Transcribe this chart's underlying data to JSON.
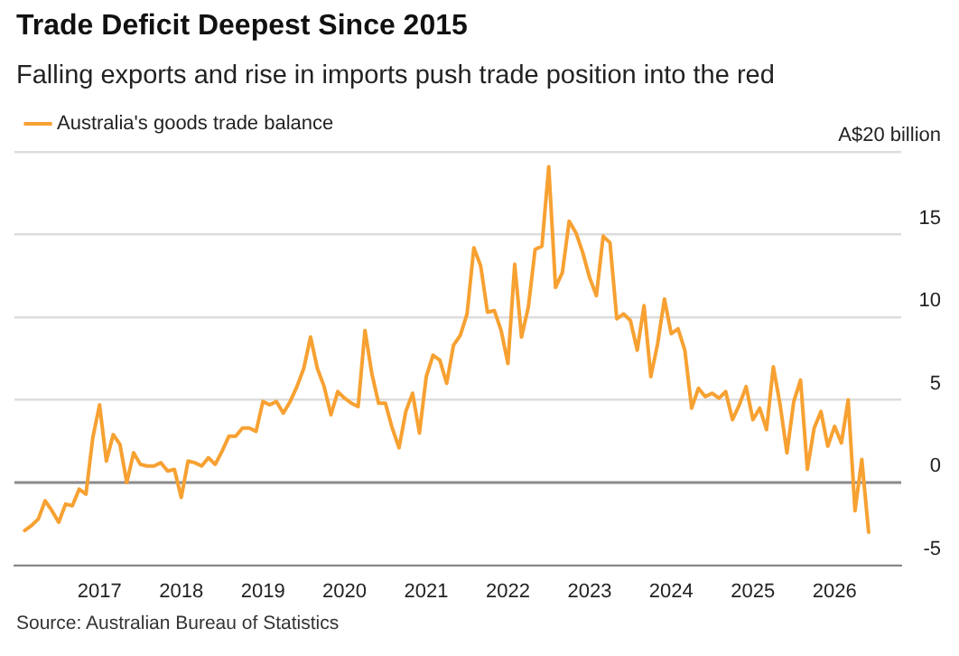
{
  "chart_data": {
    "type": "line",
    "title": "Trade Deficit Deepest Since 2015",
    "subtitle": "Falling exports and rise in imports push trade position into the red",
    "annotations": [
      "Source: Australian Bureau of Statistics"
    ],
    "x": [
      "2016-02",
      "2016-03",
      "2016-04",
      "2016-05",
      "2016-06",
      "2016-07",
      "2016-08",
      "2016-09",
      "2016-10",
      "2016-11",
      "2016-12",
      "2017-01",
      "2017-02",
      "2017-03",
      "2017-04",
      "2017-05",
      "2017-06",
      "2017-07",
      "2017-08",
      "2017-09",
      "2017-10",
      "2017-11",
      "2017-12",
      "2018-01",
      "2018-02",
      "2018-03",
      "2018-04",
      "2018-05",
      "2018-06",
      "2018-07",
      "2018-08",
      "2018-09",
      "2018-10",
      "2018-11",
      "2018-12",
      "2019-01",
      "2019-02",
      "2019-03",
      "2019-04",
      "2019-05",
      "2019-06",
      "2019-07",
      "2019-08",
      "2019-09",
      "2019-10",
      "2019-11",
      "2019-12",
      "2020-01",
      "2020-02",
      "2020-03",
      "2020-04",
      "2020-05",
      "2020-06",
      "2020-07",
      "2020-08",
      "2020-09",
      "2020-10",
      "2020-11",
      "2020-12",
      "2021-01",
      "2021-02",
      "2021-03",
      "2021-04",
      "2021-05",
      "2021-06",
      "2021-07",
      "2021-08",
      "2021-09",
      "2021-10",
      "2021-11",
      "2021-12",
      "2022-01",
      "2022-02",
      "2022-03",
      "2022-04",
      "2022-05",
      "2022-06",
      "2022-07",
      "2022-08",
      "2022-09",
      "2022-10",
      "2022-11",
      "2022-12",
      "2023-01",
      "2023-02",
      "2023-03",
      "2023-04",
      "2023-05",
      "2023-06",
      "2023-07",
      "2023-08",
      "2023-09",
      "2023-10",
      "2023-11",
      "2023-12",
      "2024-01",
      "2024-02",
      "2024-03",
      "2024-04",
      "2024-05",
      "2024-06",
      "2024-07",
      "2024-08",
      "2024-09",
      "2024-10",
      "2024-11",
      "2024-12",
      "2025-01",
      "2025-02",
      "2025-03",
      "2025-04",
      "2025-05",
      "2025-06",
      "2025-07",
      "2025-08",
      "2025-09",
      "2025-10",
      "2025-11",
      "2025-12",
      "2026-01",
      "2026-02",
      "2026-03",
      "2026-04",
      "2026-05",
      "2026-06"
    ],
    "series": [
      {
        "name": "Australia's goods trade balance",
        "color": "#f7a132",
        "values": [
          -2.9,
          -2.6,
          -2.2,
          -1.1,
          -1.7,
          -2.4,
          -1.3,
          -1.4,
          -0.4,
          -0.7,
          2.7,
          4.7,
          1.3,
          2.9,
          2.3,
          0,
          1.8,
          1.1,
          1.0,
          1.0,
          1.2,
          0.7,
          0.8,
          -0.9,
          1.3,
          1.2,
          1.0,
          1.5,
          1.1,
          1.9,
          2.8,
          2.8,
          3.3,
          3.3,
          3.1,
          4.9,
          4.7,
          4.9,
          4.2,
          4.9,
          5.8,
          6.9,
          8.8,
          6.9,
          5.8,
          4.1,
          5.5,
          5.1,
          4.8,
          4.6,
          9.2,
          6.6,
          4.8,
          4.8,
          3.3,
          2.1,
          4.3,
          5.4,
          3.0,
          6.4,
          7.7,
          7.4,
          6.0,
          8.3,
          8.9,
          10.2,
          14.2,
          13.1,
          10.3,
          10.4,
          9.2,
          7.2,
          13.2,
          8.8,
          10.6,
          14.1,
          14.3,
          19.1,
          11.8,
          12.7,
          15.8,
          15.1,
          13.9,
          12.4,
          11.3,
          14.9,
          14.5,
          9.9,
          10.2,
          9.8,
          8.0,
          10.7,
          6.4,
          8.4,
          11.1,
          9.0,
          9.3,
          8.0,
          4.5,
          5.7,
          5.2,
          5.4,
          5.1,
          5.5,
          3.8,
          4.7,
          5.8,
          3.8,
          4.5,
          3.2,
          7.0,
          4.7,
          1.8,
          4.9,
          6.2,
          0.8,
          3.3,
          4.3,
          2.2,
          3.4,
          2.4,
          5.0,
          -1.7,
          1.4,
          -3.0
        ]
      }
    ],
    "xlim": [
      "2015-12-16",
      "2026-10-25"
    ],
    "xticks": [
      "2017",
      "2018",
      "2019",
      "2020",
      "2021",
      "2022",
      "2023",
      "2024",
      "2025",
      "2026"
    ],
    "ylim": [
      -5,
      20
    ],
    "yticks": [
      -5,
      0,
      5,
      10,
      15,
      {
        "value": 20,
        "label": "A$20 billion"
      }
    ],
    "ref_lines": [
      {
        "axis": "y",
        "value": 0,
        "color": "#8c8c8c"
      }
    ],
    "grid": "y",
    "legend": "top left",
    "marker": "none",
    "line_style": "solid"
  }
}
